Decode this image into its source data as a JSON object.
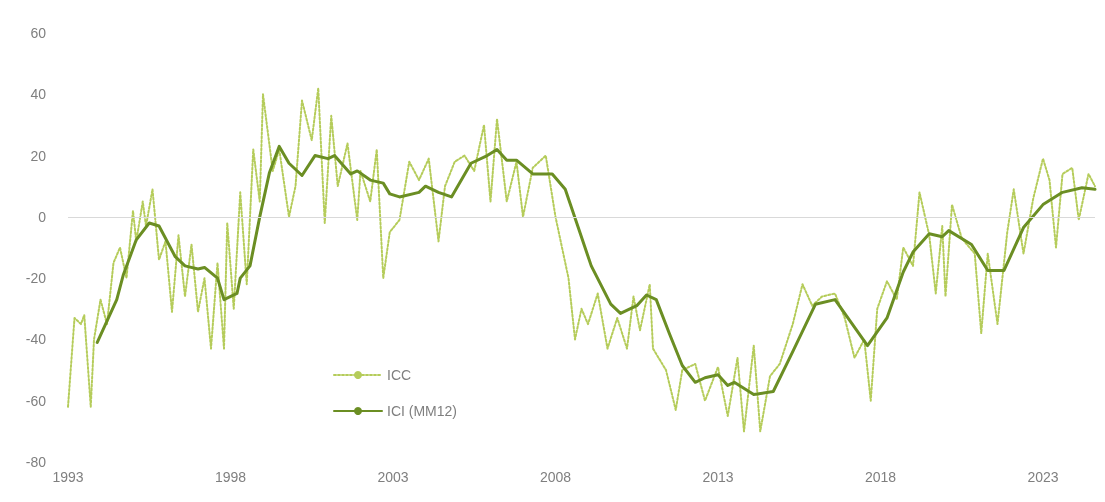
{
  "chart_data": {
    "type": "line",
    "xlim": [
      1993,
      2024.6
    ],
    "xticks": [
      1993,
      1998,
      2003,
      2008,
      2013,
      2018,
      2023
    ],
    "ylim": [
      -80,
      60
    ],
    "yticks": [
      -80,
      -60,
      -40,
      -20,
      0,
      20,
      40,
      60
    ],
    "grid": false,
    "legend": "bottom left",
    "marker": "none",
    "ref_lines": [
      {
        "axis": "y",
        "value": 0,
        "color": "#d9d9d9"
      }
    ],
    "series": [
      {
        "name": "ICC",
        "color": "#b5cc5a",
        "line_style": "dotted",
        "x": [
          1993.0,
          1993.2,
          1993.4,
          1993.5,
          1993.7,
          1993.8,
          1994.0,
          1994.2,
          1994.4,
          1994.6,
          1994.8,
          1995.0,
          1995.1,
          1995.3,
          1995.4,
          1995.6,
          1995.8,
          1996.0,
          1996.2,
          1996.4,
          1996.6,
          1996.8,
          1997.0,
          1997.2,
          1997.4,
          1997.6,
          1997.8,
          1997.9,
          1998.1,
          1998.3,
          1998.5,
          1998.7,
          1998.9,
          1999.0,
          1999.3,
          1999.5,
          1999.8,
          2000.0,
          2000.2,
          2000.5,
          2000.7,
          2000.9,
          2001.1,
          2001.3,
          2001.6,
          2001.9,
          2002.0,
          2002.3,
          2002.5,
          2002.7,
          2002.9,
          2003.2,
          2003.5,
          2003.8,
          2004.1,
          2004.4,
          2004.6,
          2004.9,
          2005.2,
          2005.5,
          2005.8,
          2006.0,
          2006.2,
          2006.5,
          2006.8,
          2007.0,
          2007.3,
          2007.7,
          2008.0,
          2008.4,
          2008.6,
          2008.8,
          2009.0,
          2009.3,
          2009.6,
          2009.9,
          2010.2,
          2010.4,
          2010.6,
          2010.9,
          2011.0,
          2011.4,
          2011.7,
          2011.9,
          2012.3,
          2012.6,
          2013.0,
          2013.3,
          2013.6,
          2013.8,
          2014.1,
          2014.3,
          2014.6,
          2014.9,
          2015.3,
          2015.6,
          2015.9,
          2016.2,
          2016.6,
          2016.9,
          2017.2,
          2017.5,
          2017.7,
          2017.9,
          2018.2,
          2018.5,
          2018.7,
          2019.0,
          2019.2,
          2019.5,
          2019.7,
          2019.9,
          2020.0,
          2020.2,
          2020.5,
          2020.9,
          2021.1,
          2021.3,
          2021.6,
          2021.9,
          2022.1,
          2022.4,
          2022.7,
          2023.0,
          2023.2,
          2023.4,
          2023.6,
          2023.9,
          2024.1,
          2024.4,
          2024.6
        ],
        "values": [
          -62,
          -33,
          -35,
          -32,
          -62,
          -40,
          -27,
          -35,
          -15,
          -10,
          -20,
          2,
          -8,
          5,
          -3,
          9,
          -14,
          -8,
          -31,
          -6,
          -26,
          -9,
          -31,
          -20,
          -43,
          -15,
          -43,
          -2,
          -30,
          8,
          -22,
          22,
          5,
          40,
          15,
          22,
          0,
          10,
          38,
          25,
          42,
          -2,
          33,
          10,
          24,
          -1,
          15,
          5,
          22,
          -20,
          -5,
          -1,
          18,
          12,
          19,
          -8,
          10,
          18,
          20,
          15,
          30,
          5,
          32,
          5,
          18,
          0,
          16,
          20,
          0,
          -20,
          -40,
          -30,
          -35,
          -25,
          -43,
          -33,
          -43,
          -26,
          -37,
          -22,
          -43,
          -50,
          -63,
          -50,
          -48,
          -60,
          -49,
          -65,
          -46,
          -70,
          -42,
          -70,
          -52,
          -48,
          -35,
          -22,
          -29,
          -26,
          -25,
          -33,
          -46,
          -40,
          -60,
          -30,
          -21,
          -27,
          -10,
          -16,
          8,
          -6,
          -25,
          -3,
          -26,
          4,
          -7,
          -12,
          -38,
          -12,
          -35,
          -5,
          9,
          -12,
          6,
          19,
          12,
          -10,
          14,
          16,
          -1,
          14,
          10
        ]
      },
      {
        "name": "ICI (MM12)",
        "color": "#6b8e23",
        "line_style": "solid",
        "x": [
          1993.9,
          1994.5,
          1994.7,
          1995.1,
          1995.5,
          1995.8,
          1996.3,
          1996.6,
          1997.0,
          1997.2,
          1997.6,
          1997.8,
          1998.2,
          1998.3,
          1998.6,
          1998.9,
          1999.2,
          1999.5,
          1999.8,
          2000.2,
          2000.6,
          2001.0,
          2001.2,
          2001.7,
          2001.9,
          2002.3,
          2002.7,
          2002.9,
          2003.2,
          2003.8,
          2004.0,
          2004.4,
          2004.8,
          2005.4,
          2005.9,
          2006.2,
          2006.5,
          2006.8,
          2007.3,
          2007.9,
          2008.3,
          2008.7,
          2009.1,
          2009.7,
          2010.0,
          2010.5,
          2010.8,
          2011.1,
          2011.5,
          2011.9,
          2012.3,
          2012.6,
          2013.0,
          2013.3,
          2013.5,
          2014.1,
          2014.7,
          2015.3,
          2016.0,
          2016.6,
          2017.6,
          2018.2,
          2018.7,
          2019.0,
          2019.5,
          2019.9,
          2020.1,
          2020.8,
          2021.3,
          2021.8,
          2022.4,
          2023.0,
          2023.6,
          2024.2,
          2024.6
        ],
        "values": [
          -41,
          -27,
          -19,
          -7.5,
          -2,
          -3,
          -13,
          -16,
          -17,
          -16.5,
          -20,
          -27,
          -25,
          -20,
          -16,
          0,
          14.5,
          23,
          17.5,
          13.5,
          20,
          19,
          20,
          14,
          15,
          12,
          11,
          7.5,
          6.5,
          8,
          10,
          8,
          6.5,
          17.5,
          20,
          22,
          18.5,
          18.5,
          14,
          14,
          9,
          -3.5,
          -16,
          -28.5,
          -31.5,
          -29,
          -25.5,
          -27,
          -38,
          -48.5,
          -54,
          -52.5,
          -51.5,
          -55,
          -54,
          -58,
          -57,
          -44,
          -28.5,
          -27,
          -42,
          -33,
          -18,
          -11.5,
          -5.5,
          -6.5,
          -4.5,
          -9,
          -17.5,
          -17.5,
          -3.5,
          4,
          8,
          9.5,
          9
        ]
      }
    ]
  }
}
